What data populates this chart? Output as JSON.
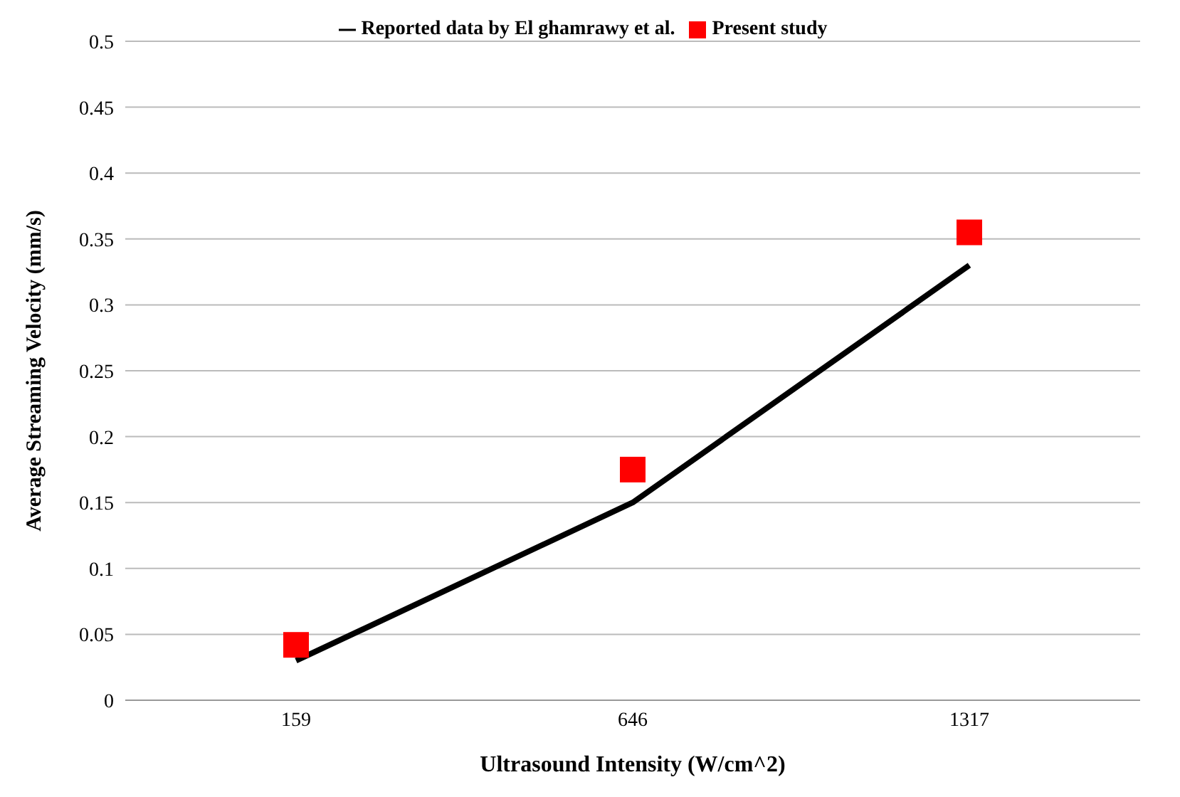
{
  "chart_data": {
    "type": "line",
    "xlabel": "Ultrasound Intensity (W/cm^2)",
    "ylabel": "Average Streaming Velocity (mm/s)",
    "categories": [
      "159",
      "646",
      "1317"
    ],
    "series": [
      {
        "name": "Reported data by El ghamrawy et al.",
        "color": "#000000",
        "marker": "none",
        "values": [
          0.03,
          0.15,
          0.33
        ]
      },
      {
        "name": "Present study",
        "type": "scatter",
        "color": "#ff0000",
        "marker": "square",
        "values": [
          0.042,
          0.175,
          0.355
        ]
      }
    ],
    "ylim": [
      0,
      0.5
    ],
    "yticks": [
      0,
      0.05,
      0.1,
      0.15,
      0.2,
      0.25,
      0.3,
      0.35,
      0.4,
      0.45,
      0.5
    ],
    "grid": "y",
    "legend": "top"
  }
}
